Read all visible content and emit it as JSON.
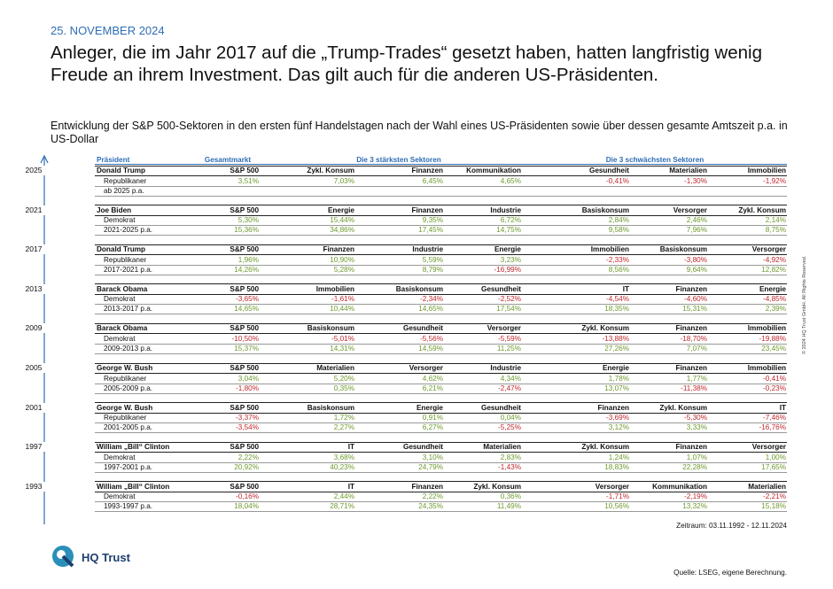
{
  "header": {
    "date": "25. NOVEMBER 2024",
    "title": "Anleger, die im Jahr 2017 auf die „Trump-Trades“ gesetzt haben, hatten langfristig wenig Freude an ihrem Investment. Das gilt auch für die anderen US-Präsidenten.",
    "subtitle": "Entwicklung der S&P 500-Sektoren in den ersten fünf Handelstagen nach der Wahl eines US-Präsidenten sowie über dessen gesamte Amtszeit p.a. in US-Dollar"
  },
  "table": {
    "columns": [
      "Präsident",
      "Gesamtmarkt",
      "Die 3 stärksten Sektoren",
      "Die 3 schwächsten Sektoren"
    ],
    "blocks": [
      {
        "year": "2025",
        "president": "Donald Trump",
        "sectors": [
          "S&P 500",
          "Zykl. Konsum",
          "Finanzen",
          "Kommunikation",
          "Gesundheit",
          "Materialien",
          "Immobilien"
        ],
        "rows": [
          {
            "label": "Republikaner",
            "values": [
              "3,51%",
              "7,03%",
              "6,45%",
              "4,65%",
              "-0,41%",
              "-1,30%",
              "-1,92%"
            ]
          },
          {
            "label": "ab 2025 p.a."
          }
        ]
      },
      {
        "year": "2021",
        "president": "Joe Biden",
        "sectors": [
          "S&P 500",
          "Energie",
          "Finanzen",
          "Industrie",
          "Basiskonsum",
          "Versorger",
          "Zykl. Konsum"
        ],
        "rows": [
          {
            "label": "Demokrat",
            "values": [
              "5,30%",
              "15,44%",
              "9,35%",
              "6,72%",
              "2,84%",
              "2,46%",
              "2,14%"
            ]
          },
          {
            "label": "2021-2025 p.a.",
            "values": [
              "15,36%",
              "34,86%",
              "17,45%",
              "14,75%",
              "9,58%",
              "7,96%",
              "8,75%"
            ]
          }
        ]
      },
      {
        "year": "2017",
        "president": "Donald Trump",
        "sectors": [
          "S&P 500",
          "Finanzen",
          "Industrie",
          "Energie",
          "Immobilien",
          "Basiskonsum",
          "Versorger"
        ],
        "rows": [
          {
            "label": "Republikaner",
            "values": [
              "1,96%",
              "10,90%",
              "5,59%",
              "3,23%",
              "-2,33%",
              "-3,80%",
              "-4,92%"
            ]
          },
          {
            "label": "2017-2021 p.a.",
            "values": [
              "14,26%",
              "5,28%",
              "8,79%",
              "-16,99%",
              "8,56%",
              "9,64%",
              "12,82%"
            ]
          }
        ]
      },
      {
        "year": "2013",
        "president": "Barack Obama",
        "sectors": [
          "S&P 500",
          "Immobilien",
          "Basiskonsum",
          "Gesundheit",
          "IT",
          "Finanzen",
          "Energie"
        ],
        "rows": [
          {
            "label": "Demokrat",
            "values": [
              "-3,65%",
              "-1,61%",
              "-2,34%",
              "-2,52%",
              "-4,54%",
              "-4,60%",
              "-4,85%"
            ]
          },
          {
            "label": "2013-2017 p.a.",
            "values": [
              "14,65%",
              "10,44%",
              "14,65%",
              "17,54%",
              "18,35%",
              "15,31%",
              "2,39%"
            ]
          }
        ]
      },
      {
        "year": "2009",
        "president": "Barack Obama",
        "sectors": [
          "S&P 500",
          "Basiskonsum",
          "Gesundheit",
          "Versorger",
          "Zykl. Konsum",
          "Finanzen",
          "Immobilien"
        ],
        "rows": [
          {
            "label": "Demokrat",
            "values": [
              "-10,50%",
              "-5,01%",
              "-5,56%",
              "-5,59%",
              "-13,88%",
              "-18,70%",
              "-19,88%"
            ]
          },
          {
            "label": "2009-2013 p.a.",
            "values": [
              "15,37%",
              "14,31%",
              "14,59%",
              "11,25%",
              "27,26%",
              "7,07%",
              "23,45%"
            ]
          }
        ]
      },
      {
        "year": "2005",
        "president": "George W. Bush",
        "sectors": [
          "S&P 500",
          "Materialien",
          "Versorger",
          "Industrie",
          "Energie",
          "Finanzen",
          "Immobilien"
        ],
        "rows": [
          {
            "label": "Republikaner",
            "values": [
              "3,04%",
              "5,20%",
              "4,62%",
              "4,34%",
              "1,78%",
              "1,77%",
              "-0,41%"
            ]
          },
          {
            "label": "2005-2009 p.a.",
            "values": [
              "-1,80%",
              "0,35%",
              "6,21%",
              "-2,47%",
              "13,07%",
              "-11,38%",
              "-0,23%"
            ]
          }
        ]
      },
      {
        "year": "2001",
        "president": "George W. Bush",
        "sectors": [
          "S&P 500",
          "Basiskonsum",
          "Energie",
          "Gesundheit",
          "Finanzen",
          "Zykl. Konsum",
          "IT"
        ],
        "rows": [
          {
            "label": "Republikaner",
            "values": [
              "-3,37%",
              "1,72%",
              "0,91%",
              "0,04%",
              "-3,69%",
              "-5,30%",
              "-7,46%"
            ]
          },
          {
            "label": "2001-2005 p.a.",
            "values": [
              "-3,54%",
              "2,27%",
              "6,27%",
              "-5,25%",
              "3,12%",
              "3,33%",
              "-16,76%"
            ]
          }
        ]
      },
      {
        "year": "1997",
        "president": "William „Bill“ Clinton",
        "sectors": [
          "S&P 500",
          "IT",
          "Gesundheit",
          "Materialien",
          "Zykl. Konsum",
          "Finanzen",
          "Versorger"
        ],
        "rows": [
          {
            "label": "Demokrat",
            "values": [
              "2,22%",
              "3,68%",
              "3,10%",
              "2,83%",
              "1,24%",
              "1,07%",
              "1,00%"
            ]
          },
          {
            "label": "1997-2001 p.a.",
            "values": [
              "20,92%",
              "40,23%",
              "24,79%",
              "-1,43%",
              "18,83%",
              "22,28%",
              "17,65%"
            ]
          }
        ]
      },
      {
        "year": "1993",
        "president": "William „Bill“ Clinton",
        "sectors": [
          "S&P 500",
          "IT",
          "Finanzen",
          "Zykl. Konsum",
          "Versorger",
          "Kommunikation",
          "Materialien"
        ],
        "rows": [
          {
            "label": "Demokrat",
            "values": [
              "-0,16%",
              "2,44%",
              "2,22%",
              "0,36%",
              "-1,71%",
              "-2,19%",
              "-2,21%"
            ]
          },
          {
            "label": "1993-1997 p.a.",
            "values": [
              "18,04%",
              "28,71%",
              "24,35%",
              "11,49%",
              "10,56%",
              "13,32%",
              "15,18%"
            ]
          }
        ]
      }
    ]
  },
  "footer": {
    "period": "Zeitraum: 03.11.1992 - 12.11.2024",
    "logo": "HQ Trust",
    "source": "Quelle: LSEG, eigene Berechnung.",
    "copyright": "© 2024 HQ Trust GmbH. All Rights Reserved."
  }
}
